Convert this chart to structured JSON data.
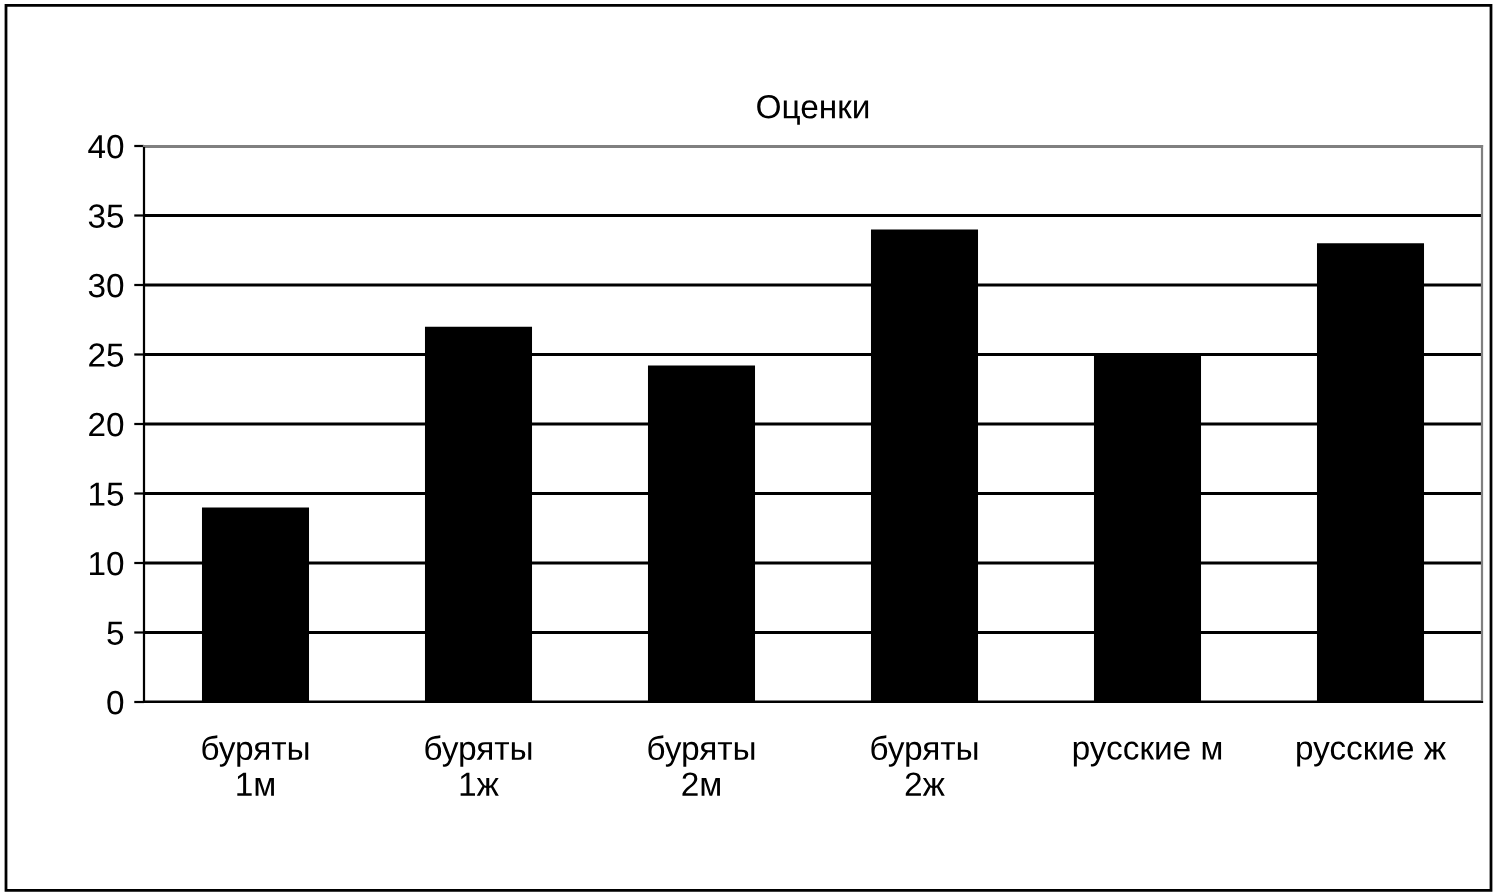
{
  "chart_data": {
    "type": "bar",
    "title": "Оценки",
    "categories": [
      "буряты\n1м",
      "буряты\n1ж",
      "буряты\n2м",
      "буряты\n2ж",
      "русские м",
      "русские ж"
    ],
    "values": [
      14,
      27,
      24.2,
      34,
      25,
      33
    ],
    "color": "#000000",
    "ylim": [
      0,
      40
    ],
    "yticks": [
      0,
      5,
      10,
      15,
      20,
      25,
      30,
      35,
      40
    ],
    "grid": "y",
    "legend": false
  }
}
